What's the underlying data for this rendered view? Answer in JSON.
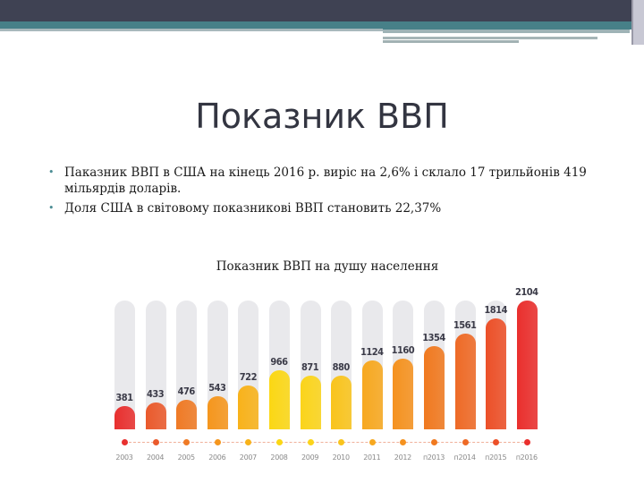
{
  "slide": {
    "title": "Показник ВВП",
    "bullets": [
      "Паказник ВВП в США на кінець 2016 р. виріс на 2,6% і склало 17 трильйонів 419 мільярдів доларів.",
      "Доля США в світовому показникові ВВП становить 22,37%"
    ],
    "bullet_glyph": "•",
    "chart_caption": "Показник ВВП на душу населення"
  },
  "theme": {
    "header_dark": "#3f4253",
    "header_teal": "#478088",
    "track_color": "#e9e9ec",
    "bar_colors": [
      "#e8302f",
      "#ea5a2c",
      "#ef7a25",
      "#f5961d",
      "#f8b21a",
      "#fbd714",
      "#fbd41a",
      "#f9c41c",
      "#f7a81f",
      "#f5921f",
      "#f0791f",
      "#ee6a26",
      "#ec5028",
      "#ea2f2d"
    ]
  },
  "chart_data": {
    "type": "bar",
    "title": "Показник ВВП на душу населення",
    "xlabel": "",
    "ylabel": "",
    "categories": [
      "2003",
      "2004",
      "2005",
      "2006",
      "2007",
      "2008",
      "2009",
      "2010",
      "2011",
      "2012",
      "п2013",
      "п2014",
      "п2015",
      "п2016"
    ],
    "values": [
      381,
      433,
      476,
      543,
      722,
      966,
      871,
      880,
      1124,
      1160,
      1354,
      1561,
      1814,
      2104
    ],
    "labels": [
      "381",
      "433",
      "476",
      "543",
      "722",
      "966",
      "871",
      "880",
      "1124",
      "1160",
      "1354",
      "1561",
      "1814",
      "2104"
    ],
    "ylim": [
      0,
      2104
    ],
    "grid": false,
    "legend": "none"
  }
}
